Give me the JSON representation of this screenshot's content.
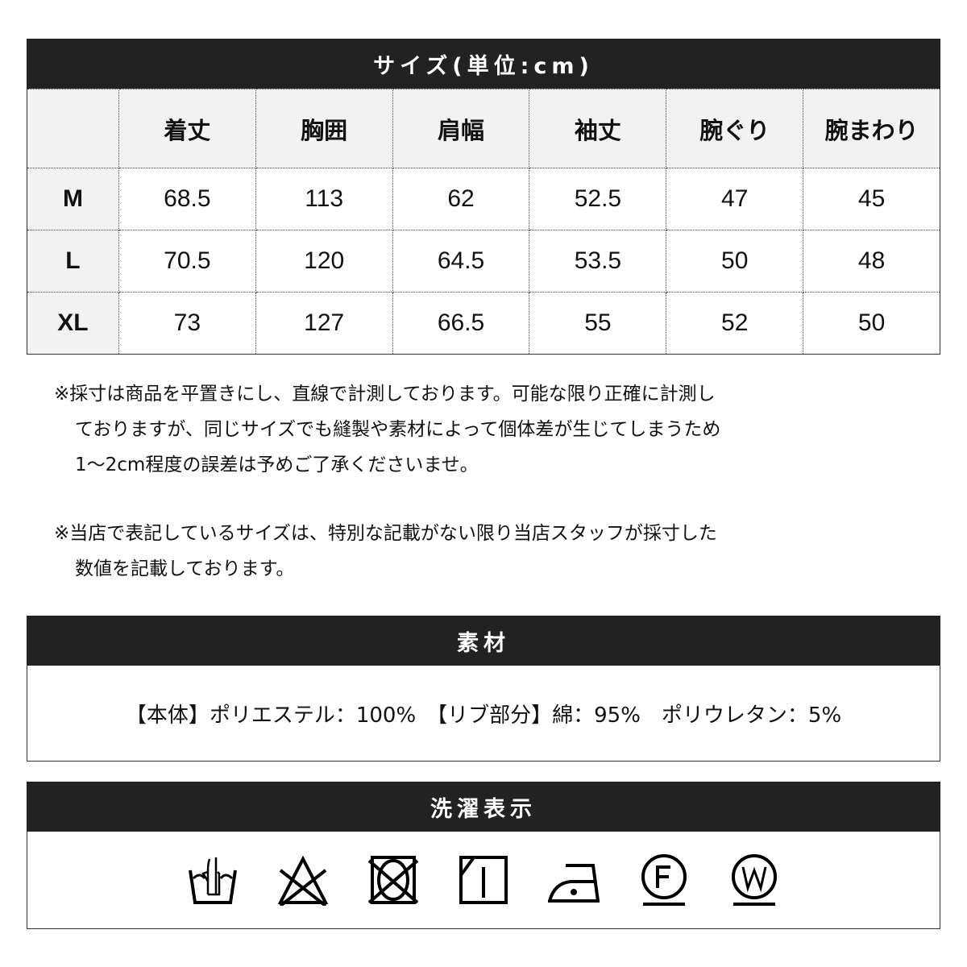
{
  "size_title": "サイズ(単位:cm)",
  "columns": [
    "",
    "着丈",
    "胸囲",
    "肩幅",
    "袖丈",
    "腕ぐり",
    "腕まわり"
  ],
  "rows": [
    {
      "size": "M",
      "values": [
        "68.5",
        "113",
        "62",
        "52.5",
        "47",
        "45"
      ]
    },
    {
      "size": "L",
      "values": [
        "70.5",
        "120",
        "64.5",
        "53.5",
        "50",
        "48"
      ]
    },
    {
      "size": "XL",
      "values": [
        "73",
        "127",
        "66.5",
        "55",
        "52",
        "50"
      ]
    }
  ],
  "notes": [
    [
      "※採寸は商品を平置きにし、直線で計測しております。可能な限り正確に計測し",
      "ておりますが、同じサイズでも縫製や素材によって個体差が生じてしまうため",
      "1～2cm程度の誤差は予めご了承くださいませ。"
    ],
    [
      "※当店で表記しているサイズは、特別な記載がない限り当店スタッフが採寸した",
      "数値を記載しております。"
    ]
  ],
  "material_title": "素材",
  "material_text": "【本体】ポリエステル：100%　【リブ部分】綿：95%　ポリウレタン：5%",
  "care_title": "洗濯表示",
  "care_icons": [
    "hand-wash-icon",
    "no-bleach-icon",
    "no-tumble-dry-icon",
    "drip-dry-shade-icon",
    "iron-low-icon",
    "dry-clean-f-icon",
    "wet-clean-w-icon"
  ]
}
